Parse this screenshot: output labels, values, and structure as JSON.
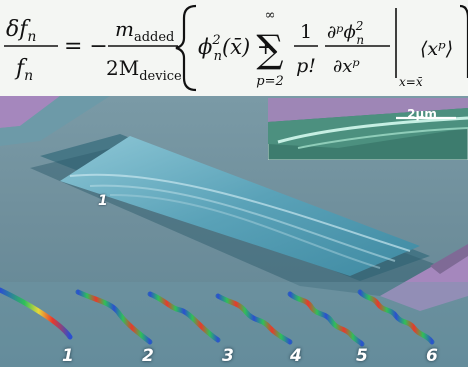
{
  "equation": {
    "lhs_numerator": "δf",
    "lhs_numerator_sub": "n",
    "lhs_denominator": "f",
    "lhs_denominator_sub": "n",
    "equals": "= −",
    "coef_numerator": "m",
    "coef_numerator_sub": "added",
    "coef_denominator": "2M",
    "coef_denominator_sub": "device",
    "phi_term": "ϕ",
    "phi_sub": "n",
    "phi_sup": "2",
    "phi_arg": "(x̄) +",
    "sum_symbol": "∑",
    "sum_upper": "∞",
    "sum_lower": "p=2",
    "frac_one": "1",
    "frac_pfact": "p!",
    "deriv_top": "∂ᵖϕ",
    "deriv_top_sub": "n",
    "deriv_top_sup": "2",
    "deriv_bottom": "∂xᵖ",
    "eval_sub": "x=x̄",
    "moment": "⟨xᵖ⟩"
  },
  "micrograph": {
    "scale_bar": "2μm",
    "beam_label": "1",
    "colors": {
      "substrate": "#6f8f9c",
      "pad": "#a587bd",
      "beam": "#5fa3b9",
      "inset_bg": "#3d7c6e"
    }
  },
  "modes": {
    "labels": [
      "1",
      "2",
      "3",
      "4",
      "5",
      "6"
    ],
    "colors": {
      "low": "#2b4fd0",
      "mid": "#2fbf5a",
      "high": "#e8392b"
    }
  }
}
